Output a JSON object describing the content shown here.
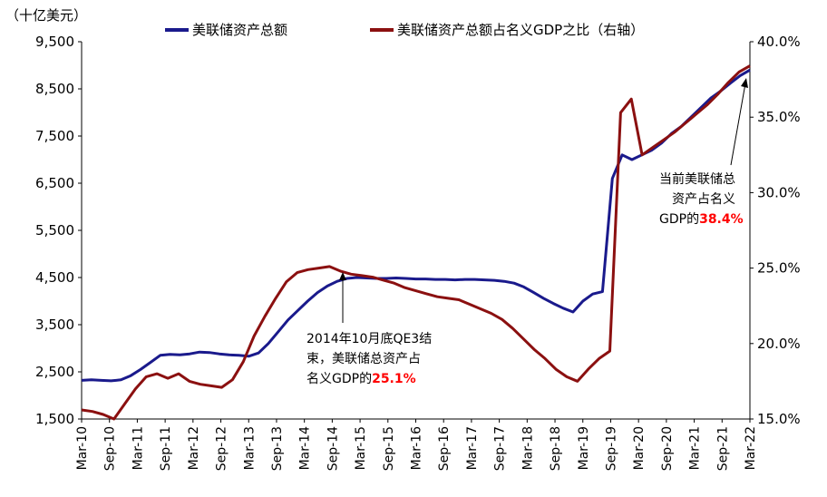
{
  "chart_data": {
    "type": "line",
    "unit_left": "（十亿美元）",
    "x_ticks": [
      "Mar-10",
      "Sep-10",
      "Mar-11",
      "Sep-11",
      "Mar-12",
      "Sep-12",
      "Mar-13",
      "Sep-13",
      "Mar-14",
      "Sep-14",
      "Mar-15",
      "Sep-15",
      "Mar-16",
      "Sep-16",
      "Mar-17",
      "Sep-17",
      "Mar-18",
      "Sep-18",
      "Mar-19",
      "Sep-19",
      "Mar-20",
      "Sep-20",
      "Mar-21",
      "Sep-21",
      "Mar-22"
    ],
    "y_left": {
      "min": 1500,
      "max": 9500,
      "ticks": [
        1500,
        2500,
        3500,
        4500,
        5500,
        6500,
        7500,
        8500,
        9500
      ],
      "tick_labels": [
        "1,500",
        "2,500",
        "3,500",
        "4,500",
        "5,500",
        "6,500",
        "7,500",
        "8,500",
        "9,500"
      ]
    },
    "y_right": {
      "min": 15.0,
      "max": 40.0,
      "ticks": [
        15,
        20,
        25,
        30,
        35,
        40
      ],
      "tick_labels": [
        "15.0%",
        "20.0%",
        "25.0%",
        "30.0%",
        "35.0%",
        "40.0%"
      ]
    },
    "series": [
      {
        "name": "美联储资产总额",
        "axis": "left",
        "color": "#1a1a8c",
        "points": [
          [
            0,
            2320
          ],
          [
            1,
            2330
          ],
          [
            2,
            2320
          ],
          [
            3,
            2310
          ],
          [
            4,
            2330
          ],
          [
            5,
            2420
          ],
          [
            6,
            2550
          ],
          [
            7,
            2700
          ],
          [
            8,
            2850
          ],
          [
            9,
            2870
          ],
          [
            10,
            2860
          ],
          [
            11,
            2880
          ],
          [
            12,
            2920
          ],
          [
            13,
            2910
          ],
          [
            14,
            2880
          ],
          [
            15,
            2860
          ],
          [
            16,
            2850
          ],
          [
            17,
            2830
          ],
          [
            18,
            2900
          ],
          [
            19,
            3100
          ],
          [
            20,
            3350
          ],
          [
            21,
            3600
          ],
          [
            22,
            3800
          ],
          [
            23,
            4000
          ],
          [
            24,
            4180
          ],
          [
            25,
            4320
          ],
          [
            26,
            4420
          ],
          [
            27,
            4480
          ],
          [
            28,
            4500
          ],
          [
            29,
            4490
          ],
          [
            30,
            4480
          ],
          [
            31,
            4480
          ],
          [
            32,
            4490
          ],
          [
            33,
            4480
          ],
          [
            34,
            4470
          ],
          [
            35,
            4470
          ],
          [
            36,
            4460
          ],
          [
            37,
            4460
          ],
          [
            38,
            4450
          ],
          [
            39,
            4460
          ],
          [
            40,
            4460
          ],
          [
            41,
            4450
          ],
          [
            42,
            4440
          ],
          [
            43,
            4420
          ],
          [
            44,
            4380
          ],
          [
            45,
            4300
          ],
          [
            46,
            4180
          ],
          [
            47,
            4060
          ],
          [
            48,
            3950
          ],
          [
            49,
            3850
          ],
          [
            50,
            3770
          ],
          [
            51,
            4000
          ],
          [
            52,
            4150
          ],
          [
            53,
            4200
          ],
          [
            54,
            6600
          ],
          [
            55,
            7100
          ],
          [
            56,
            7000
          ],
          [
            57,
            7100
          ],
          [
            58,
            7200
          ],
          [
            59,
            7350
          ],
          [
            60,
            7550
          ],
          [
            61,
            7700
          ],
          [
            62,
            7900
          ],
          [
            63,
            8100
          ],
          [
            64,
            8300
          ],
          [
            65,
            8450
          ],
          [
            66,
            8620
          ],
          [
            67,
            8780
          ],
          [
            68,
            8900
          ]
        ]
      },
      {
        "name": "美联储资产总额占名义GDP之比（右轴）",
        "axis": "right",
        "color": "#8b1010",
        "points": [
          [
            0,
            15.6
          ],
          [
            1,
            15.5
          ],
          [
            2,
            15.3
          ],
          [
            3,
            15.0
          ],
          [
            4,
            16.0
          ],
          [
            5,
            17.0
          ],
          [
            6,
            17.8
          ],
          [
            7,
            18.0
          ],
          [
            8,
            17.7
          ],
          [
            9,
            18.0
          ],
          [
            10,
            17.5
          ],
          [
            11,
            17.3
          ],
          [
            12,
            17.2
          ],
          [
            13,
            17.1
          ],
          [
            14,
            17.6
          ],
          [
            15,
            18.8
          ],
          [
            16,
            20.5
          ],
          [
            17,
            21.8
          ],
          [
            18,
            23.0
          ],
          [
            19,
            24.1
          ],
          [
            20,
            24.7
          ],
          [
            21,
            24.9
          ],
          [
            22,
            25.0
          ],
          [
            23,
            25.1
          ],
          [
            24,
            24.8
          ],
          [
            25,
            24.6
          ],
          [
            26,
            24.5
          ],
          [
            27,
            24.4
          ],
          [
            28,
            24.2
          ],
          [
            29,
            24.0
          ],
          [
            30,
            23.7
          ],
          [
            31,
            23.5
          ],
          [
            32,
            23.3
          ],
          [
            33,
            23.1
          ],
          [
            34,
            23.0
          ],
          [
            35,
            22.9
          ],
          [
            36,
            22.6
          ],
          [
            37,
            22.3
          ],
          [
            38,
            22.0
          ],
          [
            39,
            21.6
          ],
          [
            40,
            21.0
          ],
          [
            41,
            20.3
          ],
          [
            42,
            19.6
          ],
          [
            43,
            19.0
          ],
          [
            44,
            18.3
          ],
          [
            45,
            17.8
          ],
          [
            46,
            17.5
          ],
          [
            47,
            18.3
          ],
          [
            48,
            19.0
          ],
          [
            49,
            19.5
          ],
          [
            50,
            35.3
          ],
          [
            51,
            36.2
          ],
          [
            52,
            32.5
          ],
          [
            53,
            33.0
          ],
          [
            54,
            33.5
          ],
          [
            55,
            34.0
          ],
          [
            56,
            34.6
          ],
          [
            57,
            35.2
          ],
          [
            58,
            35.8
          ],
          [
            59,
            36.5
          ],
          [
            60,
            37.3
          ],
          [
            61,
            38.0
          ],
          [
            62,
            38.4
          ]
        ],
        "x_scale_note": "index step differs from left series"
      }
    ],
    "annotations": [
      {
        "lines": [
          "2014年10月底QE3结",
          "束，美联储总资产占"
        ],
        "line3_prefix": "名义GDP的",
        "highlight": "25.1%"
      },
      {
        "lines": [
          "当前美联储总",
          "资产占名义"
        ],
        "line3_prefix": "GDP的",
        "highlight": "38.4%"
      }
    ]
  }
}
